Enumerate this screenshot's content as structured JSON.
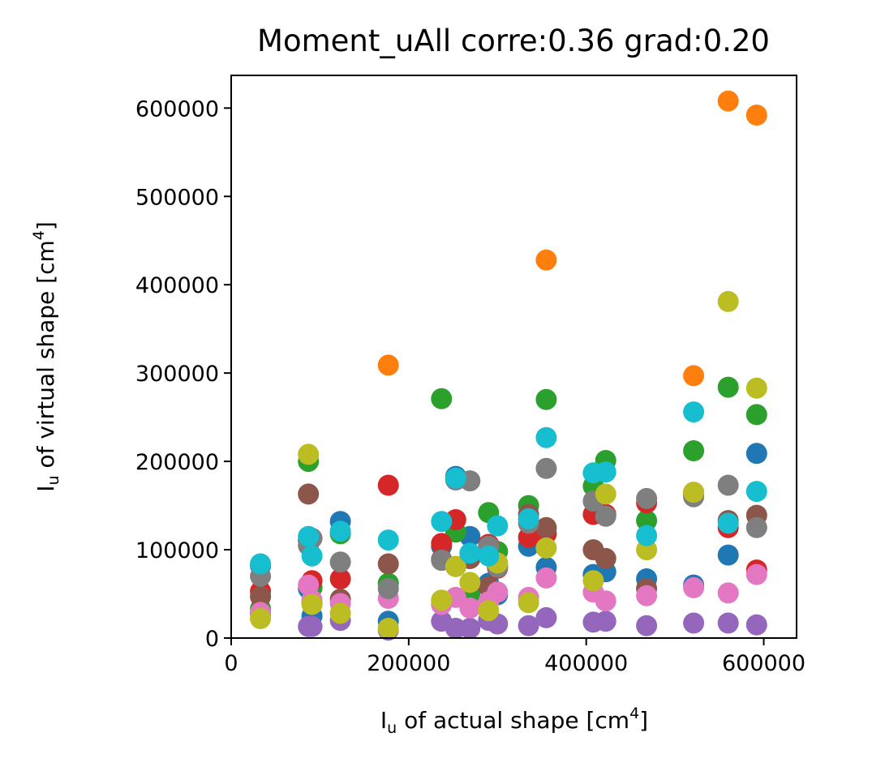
{
  "chart_data": {
    "type": "scatter",
    "title": "Moment_uAll corre:0.36 grad:0.20",
    "xlabel": {
      "main": "I",
      "sub": "u",
      "text": " of actual shape [cm",
      "sup": "4",
      "end": "]"
    },
    "ylabel": {
      "main": "I",
      "sub": "u",
      "text": " of virtual shape [cm",
      "sup": "4",
      "end": "]"
    },
    "xlim": [
      0,
      637000
    ],
    "ylim": [
      0,
      637000
    ],
    "xticks": [
      0,
      200000,
      400000,
      600000
    ],
    "yticks": [
      0,
      100000,
      200000,
      300000,
      400000,
      500000,
      600000
    ],
    "grid": false,
    "x": [
      33000,
      87000,
      91000,
      123000,
      177000,
      237000,
      253000,
      269000,
      290000,
      300000,
      335000,
      355000,
      408000,
      422000,
      468000,
      521000,
      560000,
      592000
    ],
    "series": [
      {
        "color": "#1f77b4",
        "values": [
          82000,
          56000,
          25000,
          132000,
          19000,
          104000,
          183000,
          115000,
          62000,
          49000,
          104000,
          80000,
          72000,
          75000,
          67000,
          60000,
          94000,
          209000
        ]
      },
      {
        "color": "#ff7f0e",
        "values": [
          null,
          null,
          null,
          null,
          309000,
          null,
          null,
          null,
          null,
          null,
          null,
          428000,
          null,
          null,
          null,
          297000,
          608000,
          592000
        ]
      },
      {
        "color": "#2ca02c",
        "values": [
          33000,
          200000,
          57000,
          118000,
          62000,
          271000,
          120000,
          50000,
          142000,
          98000,
          150000,
          270000,
          172000,
          201000,
          133000,
          212000,
          284000,
          253000
        ]
      },
      {
        "color": "#d62728",
        "values": [
          53000,
          111000,
          65000,
          67000,
          173000,
          107000,
          134000,
          90000,
          106000,
          79000,
          114000,
          118000,
          140000,
          140000,
          153000,
          163000,
          125000,
          77000
        ]
      },
      {
        "color": "#9467bd",
        "values": [
          27000,
          13000,
          13000,
          20000,
          9000,
          19000,
          11000,
          11000,
          20000,
          16000,
          14000,
          23000,
          18000,
          19000,
          14000,
          17000,
          17000,
          15000
        ]
      },
      {
        "color": "#8c564b",
        "values": [
          47000,
          163000,
          40000,
          44000,
          84000,
          89000,
          81000,
          90000,
          58000,
          82000,
          140000,
          125000,
          100000,
          90000,
          56000,
          165000,
          133000,
          139000
        ]
      },
      {
        "color": "#e377c2",
        "values": [
          29000,
          60000,
          43000,
          39000,
          45000,
          38000,
          46000,
          34000,
          41000,
          52000,
          46000,
          68000,
          52000,
          42000,
          48000,
          57000,
          51000,
          72000
        ]
      },
      {
        "color": "#7f7f7f",
        "values": [
          70000,
          105000,
          113000,
          86000,
          56000,
          88000,
          179000,
          178000,
          104000,
          80000,
          130000,
          192000,
          155000,
          138000,
          158000,
          160000,
          173000,
          125000
        ]
      },
      {
        "color": "#bcbd22",
        "values": [
          22000,
          208000,
          38000,
          28000,
          11000,
          43000,
          81000,
          63000,
          31000,
          85000,
          40000,
          102000,
          65000,
          163000,
          100000,
          165000,
          381000,
          283000
        ]
      },
      {
        "color": "#17becf",
        "values": [
          84000,
          115000,
          93000,
          121000,
          111000,
          132000,
          181000,
          96000,
          93000,
          127000,
          135000,
          227000,
          187000,
          188000,
          116000,
          256000,
          130000,
          166000
        ]
      }
    ]
  }
}
